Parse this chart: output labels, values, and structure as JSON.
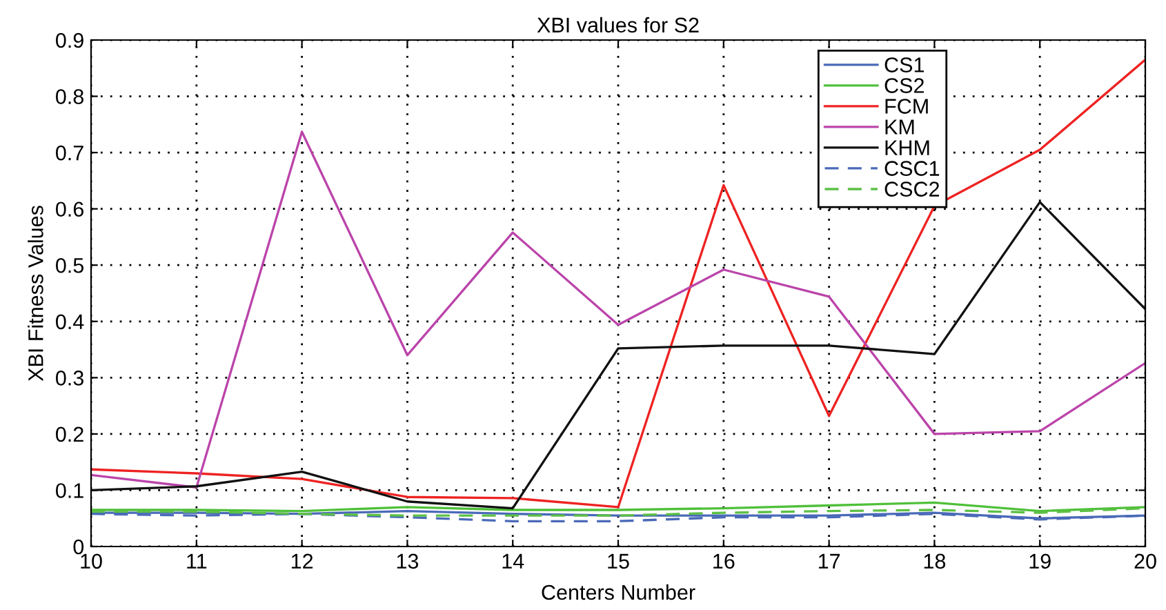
{
  "chart_data": {
    "type": "line",
    "title": "XBI values for S2",
    "xlabel": "Centers Number",
    "ylabel": "XBI Fitness Values",
    "x": [
      10,
      11,
      12,
      13,
      14,
      15,
      16,
      17,
      18,
      19,
      20
    ],
    "xlim": [
      10,
      20
    ],
    "xticks": [
      10,
      11,
      12,
      13,
      14,
      15,
      16,
      17,
      18,
      19,
      20
    ],
    "ylim": [
      0,
      0.9
    ],
    "yticks": [
      0,
      0.1,
      0.2,
      0.3,
      0.4,
      0.5,
      0.6,
      0.7,
      0.8,
      0.9
    ],
    "grid": true,
    "legend": "top right",
    "marker": "none",
    "series": [
      {
        "name": "CS1",
        "color": "#4a6ab8",
        "line_style": "solid",
        "values": [
          0.06,
          0.06,
          0.058,
          0.063,
          0.058,
          0.055,
          0.055,
          0.055,
          0.06,
          0.05,
          0.055
        ]
      },
      {
        "name": "CS2",
        "color": "#4fc03a",
        "line_style": "solid",
        "values": [
          0.065,
          0.065,
          0.063,
          0.07,
          0.065,
          0.065,
          0.068,
          0.073,
          0.078,
          0.063,
          0.07
        ]
      },
      {
        "name": "FCM",
        "color": "#ee2222",
        "line_style": "solid",
        "values": [
          0.137,
          0.13,
          0.12,
          0.088,
          0.086,
          0.07,
          0.642,
          0.232,
          0.605,
          0.705,
          0.865
        ]
      },
      {
        "name": "KM",
        "color": "#bb44aa",
        "line_style": "solid",
        "values": [
          0.127,
          0.105,
          0.737,
          0.34,
          0.558,
          0.394,
          0.492,
          0.444,
          0.2,
          0.205,
          0.326
        ]
      },
      {
        "name": "KHM",
        "color": "#111111",
        "line_style": "solid",
        "values": [
          0.1,
          0.107,
          0.133,
          0.08,
          0.068,
          0.352,
          0.357,
          0.357,
          0.342,
          0.612,
          0.422
        ]
      },
      {
        "name": "CSC1",
        "color": "#4a6ab8",
        "line_style": "dashed",
        "values": [
          0.058,
          0.055,
          0.058,
          0.052,
          0.045,
          0.045,
          0.052,
          0.052,
          0.058,
          0.048,
          0.055
        ]
      },
      {
        "name": "CSC2",
        "color": "#5cc045",
        "line_style": "dashed",
        "values": [
          0.062,
          0.062,
          0.058,
          0.055,
          0.055,
          0.055,
          0.06,
          0.063,
          0.065,
          0.06,
          0.068
        ]
      }
    ]
  }
}
